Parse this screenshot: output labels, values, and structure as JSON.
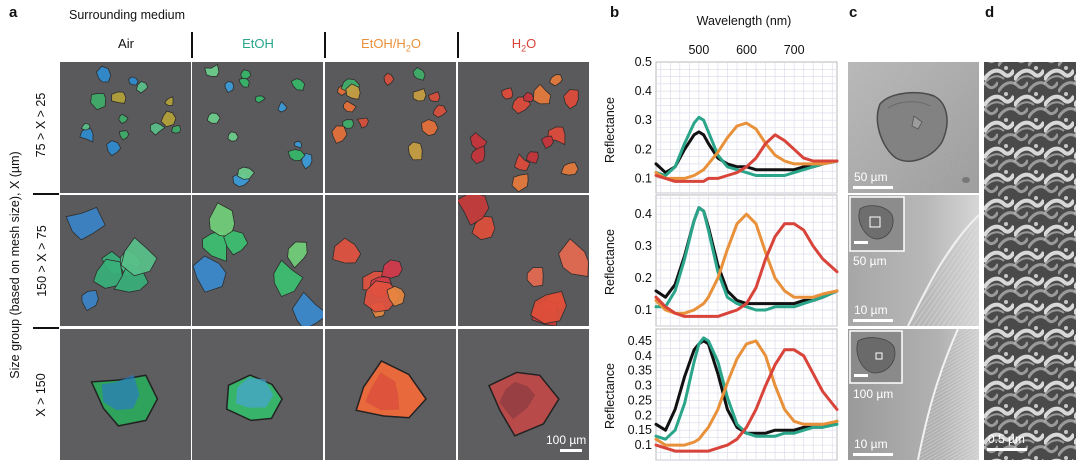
{
  "panels": {
    "a": "a",
    "b": "b",
    "c": "c",
    "d": "d"
  },
  "panel_a": {
    "title": "Surrounding medium",
    "columns": [
      "Air",
      "EtOH",
      "EtOH/H",
      "H"
    ],
    "column_subscripts": [
      "",
      "",
      "2",
      "2"
    ],
    "column_tails": [
      "",
      "",
      "O",
      "O"
    ],
    "column_colors": [
      "#111111",
      "#2aa58a",
      "#e8913a",
      "#d8443a"
    ],
    "rows": [
      "75 > X > 25",
      "150 > X > 75",
      "X > 150"
    ],
    "group_label": "Size group (based on mesh size), X (µm)",
    "scale_bar": "100 µm"
  },
  "panel_b": {
    "top_axis_label": "Wavelength (nm)",
    "top_ticks": [
      "500",
      "600",
      "700"
    ],
    "ylabel": "Reflectance"
  },
  "panel_c": {
    "scale_bars": [
      "50 µm",
      "10 µm",
      "10 µm"
    ],
    "inset_scale_bars": [
      "",
      "50 µm",
      "100 µm"
    ]
  },
  "panel_d": {
    "scale_bar": "0.5 µm"
  },
  "colors": {
    "air": "#111111",
    "etoh": "#2aa58a",
    "etoh_h2o": "#e8913a",
    "h2o": "#d8443a"
  },
  "chart_data": [
    {
      "type": "line",
      "xlabel": "Wavelength (nm)",
      "ylabel": "Reflectance",
      "xlim": [
        410,
        790
      ],
      "ylim": [
        0.05,
        0.5
      ],
      "yticks": [
        0.1,
        0.2,
        0.3,
        0.4,
        0.5
      ],
      "x": [
        410,
        430,
        450,
        470,
        490,
        500,
        510,
        520,
        540,
        560,
        580,
        600,
        620,
        640,
        660,
        680,
        700,
        720,
        740,
        760,
        790
      ],
      "series": [
        {
          "color": "#111111",
          "values": [
            0.15,
            0.12,
            0.14,
            0.2,
            0.25,
            0.26,
            0.25,
            0.22,
            0.17,
            0.15,
            0.14,
            0.14,
            0.13,
            0.13,
            0.13,
            0.13,
            0.13,
            0.14,
            0.14,
            0.15,
            0.16
          ]
        },
        {
          "color": "#2aa58a",
          "values": [
            0.12,
            0.11,
            0.14,
            0.22,
            0.29,
            0.31,
            0.3,
            0.26,
            0.18,
            0.14,
            0.13,
            0.12,
            0.11,
            0.11,
            0.11,
            0.11,
            0.12,
            0.13,
            0.14,
            0.15,
            0.16
          ]
        },
        {
          "color": "#e8913a",
          "values": [
            0.12,
            0.1,
            0.1,
            0.1,
            0.11,
            0.12,
            0.13,
            0.15,
            0.19,
            0.24,
            0.28,
            0.29,
            0.27,
            0.22,
            0.18,
            0.16,
            0.15,
            0.15,
            0.15,
            0.15,
            0.16
          ]
        },
        {
          "color": "#d8443a",
          "values": [
            0.11,
            0.1,
            0.09,
            0.09,
            0.09,
            0.09,
            0.09,
            0.1,
            0.1,
            0.11,
            0.12,
            0.14,
            0.17,
            0.22,
            0.25,
            0.23,
            0.2,
            0.17,
            0.16,
            0.16,
            0.16
          ]
        }
      ]
    },
    {
      "type": "line",
      "xlabel": "Wavelength (nm)",
      "ylabel": "Reflectance",
      "xlim": [
        410,
        790
      ],
      "ylim": [
        0.05,
        0.46
      ],
      "yticks": [
        0.1,
        0.2,
        0.3,
        0.4
      ],
      "x": [
        410,
        430,
        450,
        470,
        490,
        500,
        510,
        520,
        540,
        560,
        580,
        600,
        620,
        640,
        660,
        680,
        700,
        720,
        740,
        760,
        790
      ],
      "series": [
        {
          "color": "#111111",
          "values": [
            0.16,
            0.14,
            0.18,
            0.27,
            0.38,
            0.42,
            0.41,
            0.36,
            0.24,
            0.16,
            0.13,
            0.12,
            0.12,
            0.12,
            0.12,
            0.12,
            0.12,
            0.13,
            0.13,
            0.14,
            0.16
          ]
        },
        {
          "color": "#2aa58a",
          "values": [
            0.11,
            0.11,
            0.16,
            0.26,
            0.38,
            0.42,
            0.41,
            0.35,
            0.22,
            0.14,
            0.12,
            0.11,
            0.1,
            0.1,
            0.11,
            0.11,
            0.11,
            0.12,
            0.13,
            0.14,
            0.16
          ]
        },
        {
          "color": "#e8913a",
          "values": [
            0.13,
            0.1,
            0.09,
            0.09,
            0.1,
            0.11,
            0.12,
            0.14,
            0.2,
            0.29,
            0.37,
            0.4,
            0.37,
            0.28,
            0.2,
            0.16,
            0.14,
            0.14,
            0.14,
            0.15,
            0.16
          ]
        },
        {
          "color": "#d8443a",
          "values": [
            0.14,
            0.11,
            0.09,
            0.08,
            0.08,
            0.08,
            0.08,
            0.08,
            0.08,
            0.09,
            0.1,
            0.12,
            0.17,
            0.26,
            0.33,
            0.37,
            0.37,
            0.35,
            0.3,
            0.26,
            0.22
          ]
        }
      ]
    },
    {
      "type": "line",
      "xlabel": "Wavelength (nm)",
      "ylabel": "Reflectance",
      "xlim": [
        410,
        790
      ],
      "ylim": [
        0.05,
        0.49
      ],
      "yticks": [
        0.1,
        0.15,
        0.2,
        0.25,
        0.3,
        0.35,
        0.4,
        0.45
      ],
      "x": [
        410,
        430,
        450,
        470,
        490,
        500,
        510,
        520,
        540,
        560,
        580,
        600,
        620,
        640,
        660,
        680,
        700,
        720,
        740,
        760,
        790
      ],
      "series": [
        {
          "color": "#111111",
          "values": [
            0.17,
            0.15,
            0.22,
            0.33,
            0.42,
            0.44,
            0.45,
            0.44,
            0.34,
            0.22,
            0.16,
            0.14,
            0.14,
            0.14,
            0.15,
            0.15,
            0.15,
            0.16,
            0.16,
            0.16,
            0.18
          ]
        },
        {
          "color": "#2aa58a",
          "values": [
            0.13,
            0.12,
            0.15,
            0.24,
            0.38,
            0.44,
            0.46,
            0.45,
            0.38,
            0.26,
            0.17,
            0.14,
            0.13,
            0.13,
            0.13,
            0.14,
            0.14,
            0.15,
            0.16,
            0.16,
            0.17
          ]
        },
        {
          "color": "#e8913a",
          "values": [
            0.12,
            0.1,
            0.1,
            0.1,
            0.11,
            0.12,
            0.14,
            0.16,
            0.22,
            0.31,
            0.39,
            0.44,
            0.45,
            0.4,
            0.3,
            0.22,
            0.18,
            0.17,
            0.17,
            0.17,
            0.18
          ]
        },
        {
          "color": "#d8443a",
          "values": [
            0.1,
            0.09,
            0.08,
            0.08,
            0.08,
            0.08,
            0.08,
            0.08,
            0.09,
            0.1,
            0.12,
            0.16,
            0.22,
            0.3,
            0.37,
            0.42,
            0.42,
            0.4,
            0.34,
            0.28,
            0.22
          ]
        }
      ]
    }
  ]
}
